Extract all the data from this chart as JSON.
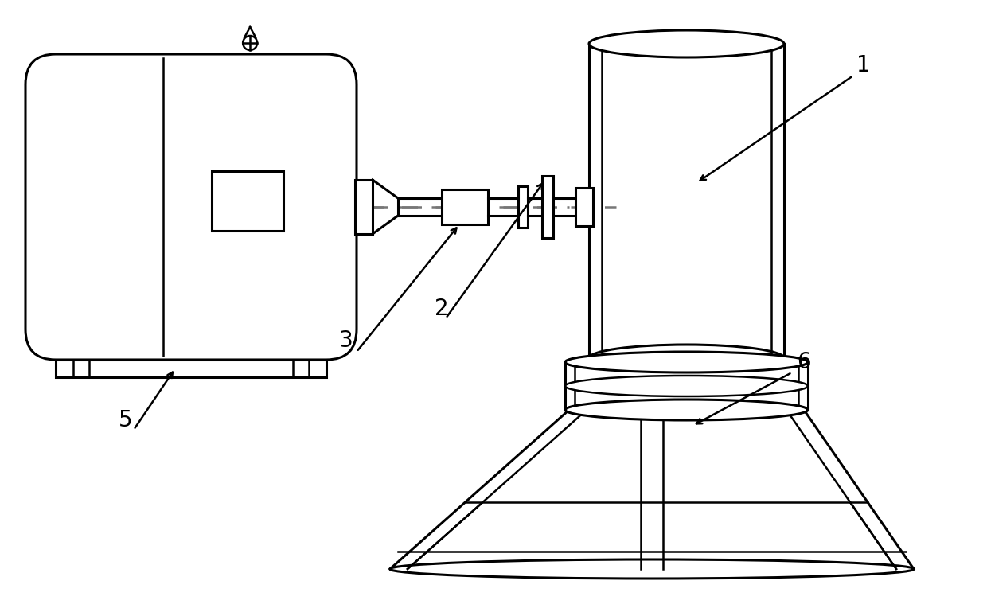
{
  "background_color": "#ffffff",
  "line_color": "#000000",
  "dashed_color": "#777777",
  "lw": 1.8,
  "lw2": 2.2,
  "label_fontsize": 20
}
